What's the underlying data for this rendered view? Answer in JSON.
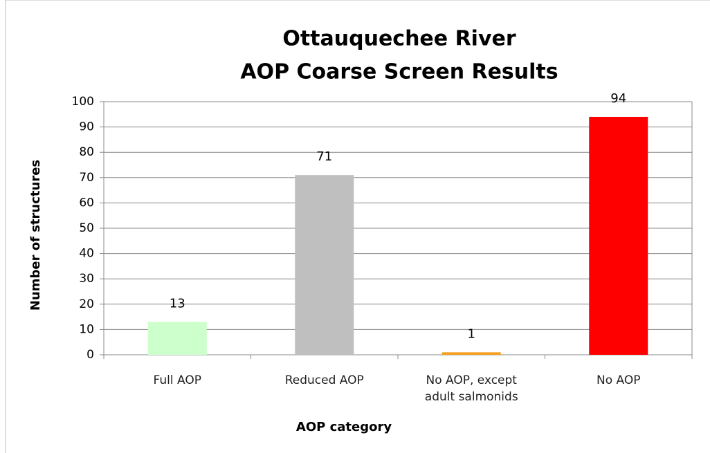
{
  "chart_data": {
    "type": "bar",
    "title": [
      "Ottauquechee River",
      "AOP Coarse Screen Results"
    ],
    "x_label": "AOP category",
    "y_label": "Number of structures",
    "categories": [
      "Full AOP",
      "Reduced AOP",
      "No AOP, except adult salmonids",
      "No AOP"
    ],
    "values": [
      13,
      71,
      1,
      94
    ],
    "colors": [
      "#ccffcc",
      "#bfbfbf",
      "#f5a020",
      "#ff0000"
    ],
    "ylim": [
      0,
      100
    ],
    "yticks": [
      0,
      10,
      20,
      30,
      40,
      50,
      60,
      70,
      80,
      90,
      100
    ],
    "grid": true,
    "data_labels": true
  }
}
